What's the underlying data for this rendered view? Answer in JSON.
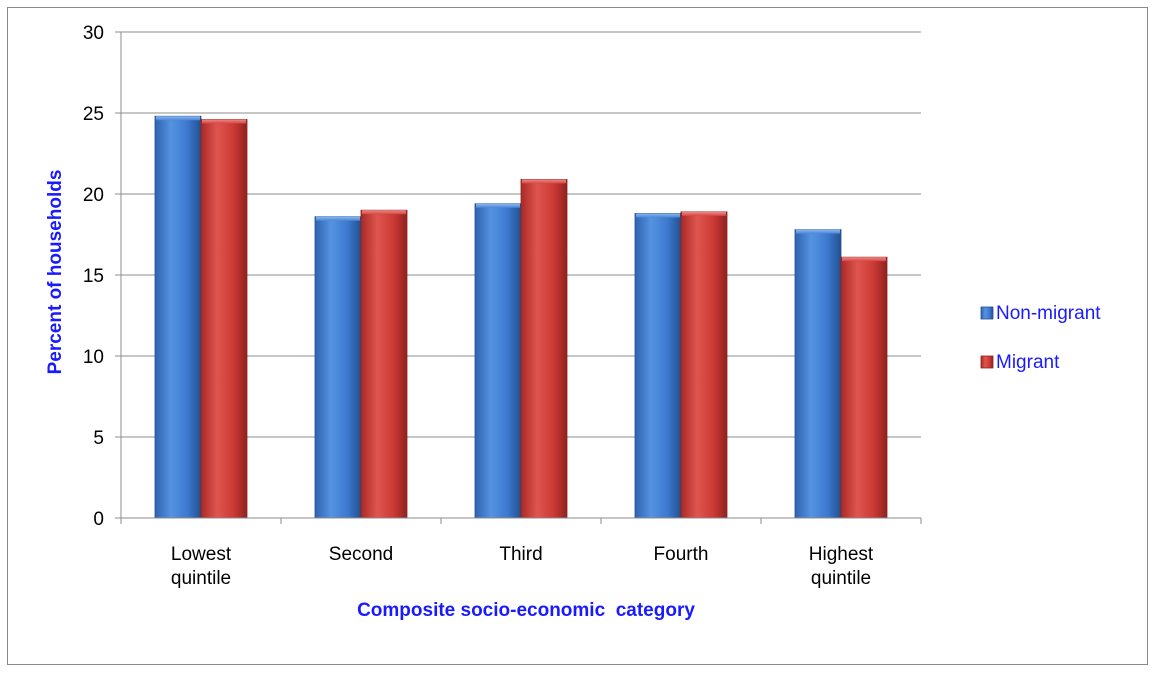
{
  "chart_data": {
    "type": "bar",
    "title": "",
    "xlabel": "Composite socio-economic  category",
    "ylabel": "Percent of households",
    "ylim": [
      0,
      30
    ],
    "yticks": [
      "0",
      "5",
      "10",
      "15",
      "20",
      "25",
      "30"
    ],
    "categories": [
      [
        "Lowest",
        "quintile"
      ],
      [
        "Second"
      ],
      [
        "Third"
      ],
      [
        "Fourth"
      ],
      [
        "Highest",
        "quintile"
      ]
    ],
    "series": [
      {
        "name": "Non-migrant",
        "values": [
          24.8,
          18.6,
          19.4,
          18.8,
          17.8
        ],
        "color": "#3f7fcf"
      },
      {
        "name": "Migrant",
        "values": [
          24.6,
          19.0,
          20.9,
          18.9,
          16.1
        ],
        "color": "#cc3b37"
      }
    ],
    "grid": true,
    "legend_position": "right",
    "label_color": "#1a1aff"
  }
}
